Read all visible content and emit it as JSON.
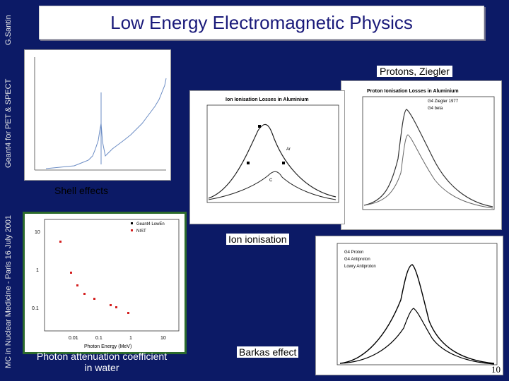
{
  "sidebar": {
    "author": "G.Santin",
    "subtitle": "Geant4 for PET & SPECT",
    "conference": "MC in Nuclear Medicine - Paris 16 July 2001"
  },
  "header": {
    "title": "Low Energy Electromagnetic Physics"
  },
  "panels": {
    "shell": {
      "label": "Shell effects"
    },
    "protons": {
      "label": "Protons, Ziegler",
      "chart_title": "Proton Ionisation Losses in Aluminium",
      "legend": [
        "G4 Ziegler 1977",
        "G4 beta"
      ]
    },
    "ion": {
      "label": "Ion ionisation",
      "chart_title": "Ion Ionisation Losses in Aluminium",
      "annotations": [
        "Ar",
        "C"
      ]
    },
    "photon": {
      "caption_line1": "Photon attenuation coefficient",
      "caption_line2": "in water",
      "legend": [
        "Geant4 LowEn",
        "NIST"
      ],
      "xlabel": "Photon Energy (MeV)",
      "y_ticks": [
        "10",
        "1",
        "0.1"
      ],
      "x_ticks": [
        "0.01",
        "0.1",
        "1",
        "10"
      ]
    },
    "barkas": {
      "label": "Barkas effect",
      "legend": [
        "G4 Proton",
        "G4 Antiproton",
        "Lowry Antiproton"
      ]
    }
  },
  "footer": {
    "page": "10"
  },
  "colors": {
    "background": "#0c1a66",
    "title_text": "#1a1a7a",
    "panel_border": "#2c6b2c"
  }
}
